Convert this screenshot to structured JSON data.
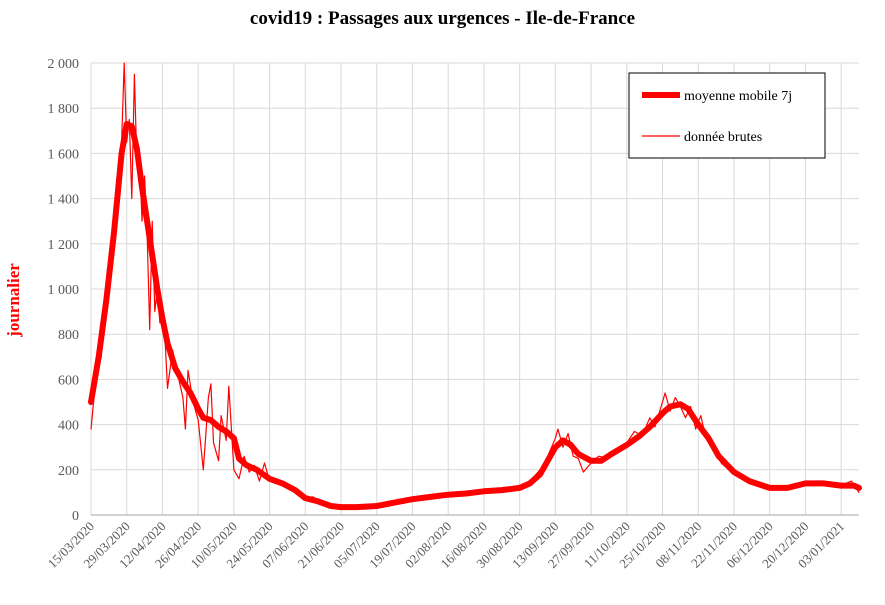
{
  "chart_data": {
    "type": "line",
    "title": "covid19 : Passages aux urgences - Ile-de-France",
    "ylabel": "journalier",
    "xlabel": "",
    "ylim": [
      0,
      2000
    ],
    "yticks": [
      0,
      200,
      400,
      600,
      800,
      1000,
      1200,
      1400,
      1600,
      1800,
      2000
    ],
    "ytick_labels": [
      "0",
      "200",
      "400",
      "600",
      "800",
      "1 000",
      "1 200",
      "1 400",
      "1 600",
      "1 800",
      "2 000"
    ],
    "x_start": "2020-03-15",
    "x_end": "2021-01-10",
    "x_tick_labels": [
      "15/03/2020",
      "29/03/2020",
      "12/04/2020",
      "26/04/2020",
      "10/05/2020",
      "24/05/2020",
      "07/06/2020",
      "21/06/2020",
      "05/07/2020",
      "19/07/2020",
      "02/08/2020",
      "16/08/2020",
      "30/08/2020",
      "13/09/2020",
      "27/09/2020",
      "11/10/2020",
      "25/10/2020",
      "08/11/2020",
      "22/11/2020",
      "06/12/2020",
      "20/12/2020",
      "03/01/2021"
    ],
    "grid": true,
    "legend_position": "top-right",
    "series": [
      {
        "name": "moyenne mobile 7j",
        "color": "#ff0000",
        "points": [
          [
            "2020-03-15",
            500
          ],
          [
            "2020-03-18",
            700
          ],
          [
            "2020-03-21",
            950
          ],
          [
            "2020-03-24",
            1250
          ],
          [
            "2020-03-27",
            1600
          ],
          [
            "2020-03-29",
            1730
          ],
          [
            "2020-03-31",
            1720
          ],
          [
            "2020-04-02",
            1620
          ],
          [
            "2020-04-04",
            1450
          ],
          [
            "2020-04-06",
            1300
          ],
          [
            "2020-04-08",
            1150
          ],
          [
            "2020-04-10",
            1000
          ],
          [
            "2020-04-12",
            870
          ],
          [
            "2020-04-14",
            760
          ],
          [
            "2020-04-17",
            650
          ],
          [
            "2020-04-20",
            590
          ],
          [
            "2020-04-23",
            540
          ],
          [
            "2020-04-26",
            470
          ],
          [
            "2020-04-28",
            430
          ],
          [
            "2020-05-01",
            420
          ],
          [
            "2020-05-04",
            390
          ],
          [
            "2020-05-07",
            370
          ],
          [
            "2020-05-10",
            340
          ],
          [
            "2020-05-12",
            250
          ],
          [
            "2020-05-15",
            220
          ],
          [
            "2020-05-19",
            200
          ],
          [
            "2020-05-24",
            160
          ],
          [
            "2020-05-29",
            140
          ],
          [
            "2020-06-03",
            110
          ],
          [
            "2020-06-07",
            75
          ],
          [
            "2020-06-12",
            60
          ],
          [
            "2020-06-17",
            40
          ],
          [
            "2020-06-21",
            35
          ],
          [
            "2020-06-27",
            35
          ],
          [
            "2020-07-05",
            40
          ],
          [
            "2020-07-12",
            55
          ],
          [
            "2020-07-19",
            70
          ],
          [
            "2020-07-26",
            80
          ],
          [
            "2020-08-02",
            90
          ],
          [
            "2020-08-09",
            95
          ],
          [
            "2020-08-16",
            105
          ],
          [
            "2020-08-23",
            110
          ],
          [
            "2020-08-30",
            120
          ],
          [
            "2020-09-03",
            140
          ],
          [
            "2020-09-07",
            180
          ],
          [
            "2020-09-10",
            240
          ],
          [
            "2020-09-13",
            300
          ],
          [
            "2020-09-16",
            330
          ],
          [
            "2020-09-19",
            310
          ],
          [
            "2020-09-22",
            270
          ],
          [
            "2020-09-27",
            240
          ],
          [
            "2020-10-01",
            240
          ],
          [
            "2020-10-05",
            270
          ],
          [
            "2020-10-11",
            310
          ],
          [
            "2020-10-16",
            350
          ],
          [
            "2020-10-20",
            390
          ],
          [
            "2020-10-25",
            450
          ],
          [
            "2020-10-28",
            480
          ],
          [
            "2020-11-01",
            490
          ],
          [
            "2020-11-04",
            470
          ],
          [
            "2020-11-08",
            400
          ],
          [
            "2020-11-12",
            340
          ],
          [
            "2020-11-16",
            260
          ],
          [
            "2020-11-22",
            190
          ],
          [
            "2020-11-28",
            150
          ],
          [
            "2020-12-06",
            120
          ],
          [
            "2020-12-13",
            120
          ],
          [
            "2020-12-20",
            140
          ],
          [
            "2020-12-27",
            140
          ],
          [
            "2021-01-03",
            130
          ],
          [
            "2021-01-08",
            130
          ],
          [
            "2021-01-10",
            120
          ]
        ]
      },
      {
        "name": "donnée brutes",
        "color": "#ff0000",
        "points": [
          [
            "2020-03-15",
            380
          ],
          [
            "2020-03-17",
            620
          ],
          [
            "2020-03-19",
            700
          ],
          [
            "2020-03-21",
            950
          ],
          [
            "2020-03-23",
            1100
          ],
          [
            "2020-03-25",
            1400
          ],
          [
            "2020-03-27",
            1650
          ],
          [
            "2020-03-28",
            2000
          ],
          [
            "2020-03-29",
            1650
          ],
          [
            "2020-03-30",
            1750
          ],
          [
            "2020-03-31",
            1400
          ],
          [
            "2020-04-01",
            1950
          ],
          [
            "2020-04-02",
            1550
          ],
          [
            "2020-04-03",
            1600
          ],
          [
            "2020-04-04",
            1300
          ],
          [
            "2020-04-05",
            1500
          ],
          [
            "2020-04-06",
            1250
          ],
          [
            "2020-04-07",
            820
          ],
          [
            "2020-04-08",
            1300
          ],
          [
            "2020-04-09",
            900
          ],
          [
            "2020-04-10",
            1000
          ],
          [
            "2020-04-11",
            850
          ],
          [
            "2020-04-12",
            920
          ],
          [
            "2020-04-13",
            780
          ],
          [
            "2020-04-14",
            560
          ],
          [
            "2020-04-16",
            730
          ],
          [
            "2020-04-18",
            620
          ],
          [
            "2020-04-20",
            520
          ],
          [
            "2020-04-21",
            380
          ],
          [
            "2020-04-22",
            640
          ],
          [
            "2020-04-24",
            500
          ],
          [
            "2020-04-26",
            420
          ],
          [
            "2020-04-28",
            200
          ],
          [
            "2020-04-30",
            520
          ],
          [
            "2020-05-01",
            580
          ],
          [
            "2020-05-02",
            320
          ],
          [
            "2020-05-04",
            240
          ],
          [
            "2020-05-05",
            440
          ],
          [
            "2020-05-07",
            330
          ],
          [
            "2020-05-08",
            570
          ],
          [
            "2020-05-10",
            200
          ],
          [
            "2020-05-12",
            160
          ],
          [
            "2020-05-14",
            260
          ],
          [
            "2020-05-16",
            190
          ],
          [
            "2020-05-18",
            220
          ],
          [
            "2020-05-20",
            150
          ],
          [
            "2020-05-22",
            230
          ],
          [
            "2020-05-24",
            150
          ],
          [
            "2020-05-27",
            160
          ],
          [
            "2020-05-30",
            130
          ],
          [
            "2020-06-02",
            110
          ],
          [
            "2020-06-05",
            90
          ],
          [
            "2020-06-07",
            75
          ],
          [
            "2020-06-10",
            80
          ],
          [
            "2020-06-14",
            50
          ],
          [
            "2020-06-17",
            45
          ],
          [
            "2020-06-21",
            30
          ],
          [
            "2020-06-27",
            40
          ],
          [
            "2020-07-05",
            45
          ],
          [
            "2020-07-12",
            60
          ],
          [
            "2020-07-19",
            75
          ],
          [
            "2020-07-26",
            85
          ],
          [
            "2020-08-02",
            95
          ],
          [
            "2020-08-09",
            100
          ],
          [
            "2020-08-16",
            110
          ],
          [
            "2020-08-23",
            115
          ],
          [
            "2020-08-30",
            130
          ],
          [
            "2020-09-03",
            150
          ],
          [
            "2020-09-07",
            200
          ],
          [
            "2020-09-10",
            260
          ],
          [
            "2020-09-13",
            340
          ],
          [
            "2020-09-14",
            380
          ],
          [
            "2020-09-16",
            300
          ],
          [
            "2020-09-18",
            360
          ],
          [
            "2020-09-20",
            260
          ],
          [
            "2020-09-22",
            250
          ],
          [
            "2020-09-24",
            190
          ],
          [
            "2020-09-27",
            230
          ],
          [
            "2020-09-30",
            260
          ],
          [
            "2020-10-04",
            250
          ],
          [
            "2020-10-08",
            290
          ],
          [
            "2020-10-11",
            320
          ],
          [
            "2020-10-14",
            370
          ],
          [
            "2020-10-17",
            350
          ],
          [
            "2020-10-20",
            430
          ],
          [
            "2020-10-22",
            390
          ],
          [
            "2020-10-25",
            500
          ],
          [
            "2020-10-26",
            540
          ],
          [
            "2020-10-28",
            460
          ],
          [
            "2020-10-30",
            520
          ],
          [
            "2020-11-01",
            480
          ],
          [
            "2020-11-03",
            430
          ],
          [
            "2020-11-05",
            480
          ],
          [
            "2020-11-07",
            380
          ],
          [
            "2020-11-09",
            440
          ],
          [
            "2020-11-11",
            340
          ],
          [
            "2020-11-14",
            300
          ],
          [
            "2020-11-17",
            230
          ],
          [
            "2020-11-20",
            200
          ],
          [
            "2020-11-24",
            170
          ],
          [
            "2020-11-28",
            150
          ],
          [
            "2020-12-03",
            130
          ],
          [
            "2020-12-06",
            120
          ],
          [
            "2020-12-10",
            110
          ],
          [
            "2020-12-14",
            125
          ],
          [
            "2020-12-20",
            145
          ],
          [
            "2020-12-24",
            150
          ],
          [
            "2020-12-28",
            135
          ],
          [
            "2021-01-03",
            130
          ],
          [
            "2021-01-07",
            150
          ],
          [
            "2021-01-10",
            100
          ]
        ]
      }
    ]
  }
}
